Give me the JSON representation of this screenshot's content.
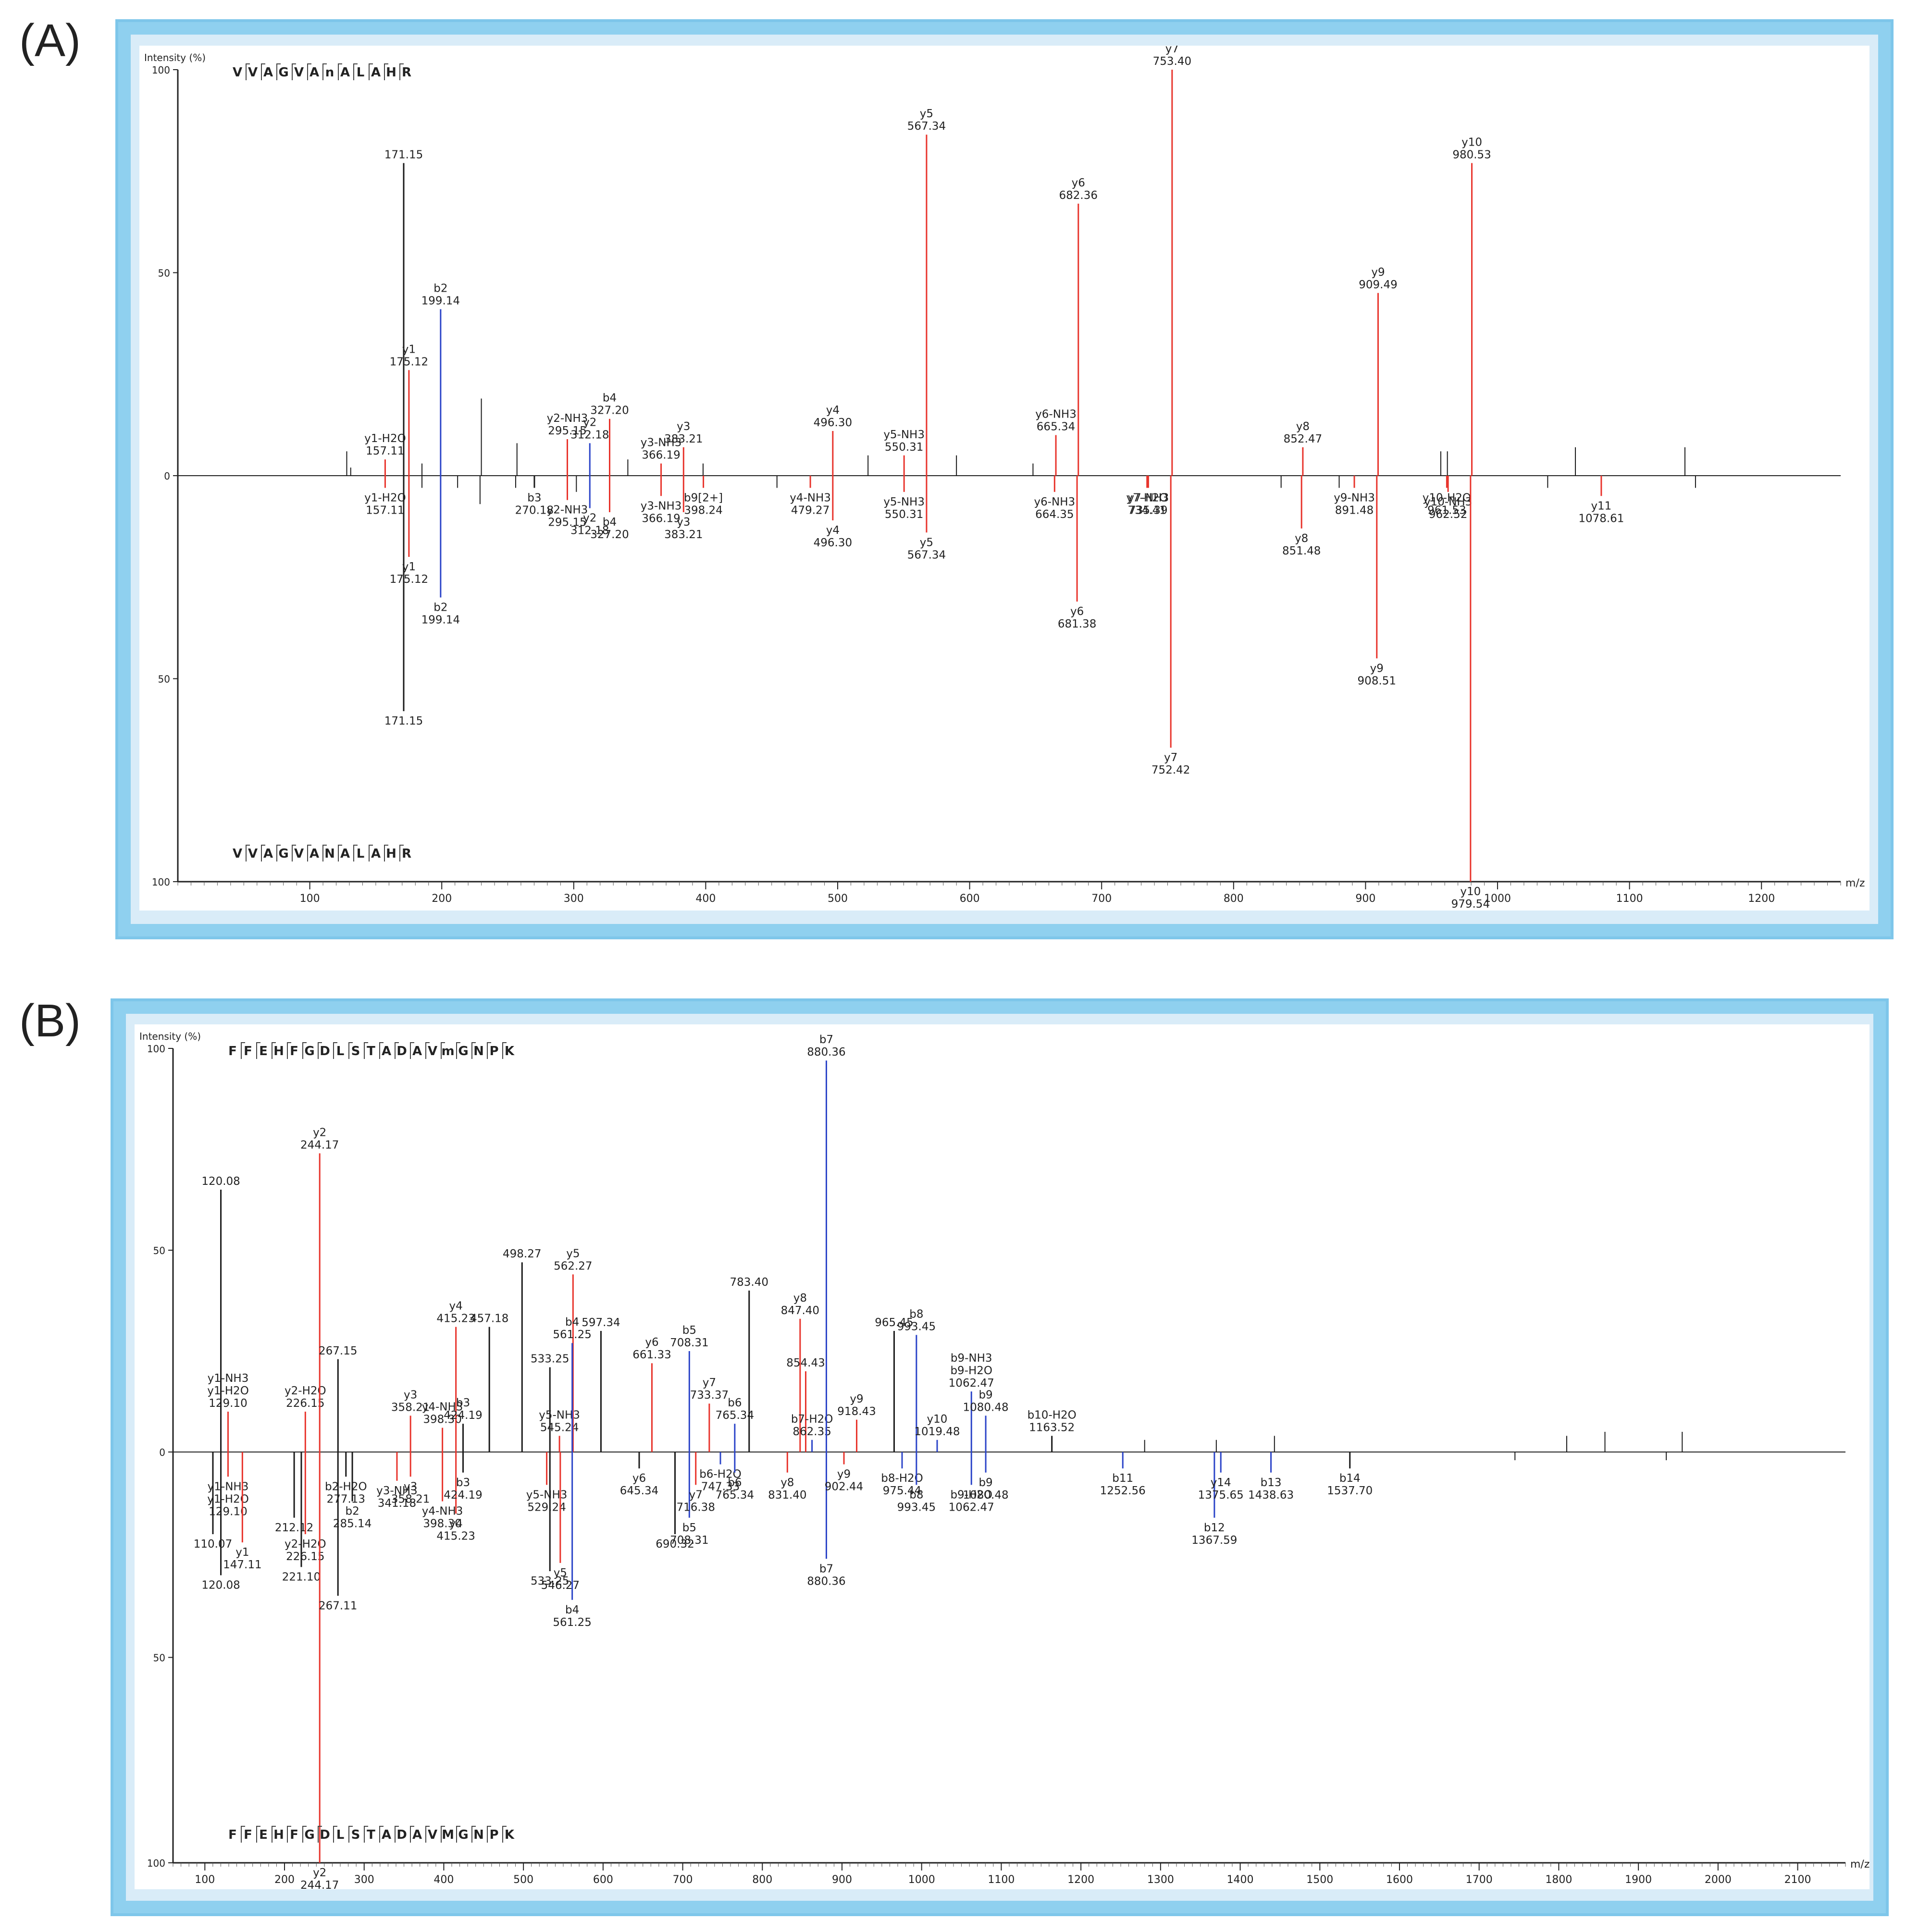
{
  "figure": {
    "panel_a_label": "(A)",
    "panel_b_label": "(B)"
  },
  "colors": {
    "y_ion": "#e8342c",
    "b_ion": "#2b44c8",
    "other": "#1a1a1a",
    "frame": "#8fd0ef"
  },
  "chart_data": [
    {
      "type": "bar",
      "panel": "(A)",
      "ylabel": "Intensity (%)",
      "xlabel": "m/z",
      "xlim": [
        0,
        1260
      ],
      "ylim_top": [
        0,
        100
      ],
      "ylim_bottom": [
        0,
        100
      ],
      "xticks": [
        100,
        200,
        300,
        400,
        500,
        600,
        700,
        800,
        900,
        1000,
        1100,
        1200
      ],
      "yticks_top": [
        100,
        50,
        0
      ],
      "yticks_bottom": [
        50,
        100
      ],
      "sequence_top": "VVAGVAnALAHR",
      "sequence_bottom": "VVAGVANALAHR",
      "peaks_top": [
        {
          "mz": 171.15,
          "i": 77,
          "c": "k",
          "label": "171.15"
        },
        {
          "mz": 175.12,
          "i": 26,
          "c": "y",
          "label": "y1\n175.12"
        },
        {
          "mz": 157.11,
          "i": 4,
          "c": "y",
          "label": "y1-H2O\n157.11"
        },
        {
          "mz": 199.14,
          "i": 41,
          "c": "b",
          "label": "b2\n199.14"
        },
        {
          "mz": 295.15,
          "i": 9,
          "c": "y",
          "label": "y2-NH3\n295.15"
        },
        {
          "mz": 312.18,
          "i": 8,
          "c": "b",
          "label": "y2\n312.18"
        },
        {
          "mz": 327.2,
          "i": 14,
          "c": "y",
          "label": "b4\n327.20"
        },
        {
          "mz": 366.19,
          "i": 3,
          "c": "y",
          "label": "y3-NH3\n366.19"
        },
        {
          "mz": 383.21,
          "i": 7,
          "c": "y",
          "label": "y3\n383.21"
        },
        {
          "mz": 496.3,
          "i": 11,
          "c": "y",
          "label": "y4\n496.30"
        },
        {
          "mz": 550.31,
          "i": 5,
          "c": "y",
          "label": "y5-NH3\n550.31"
        },
        {
          "mz": 567.34,
          "i": 84,
          "c": "y",
          "label": "y5\n567.34"
        },
        {
          "mz": 665.34,
          "i": 10,
          "c": "y",
          "label": "y6-NH3\n665.34"
        },
        {
          "mz": 682.36,
          "i": 67,
          "c": "y",
          "label": "y6\n682.36"
        },
        {
          "mz": 753.4,
          "i": 100,
          "c": "y",
          "label": "y7\n753.40"
        },
        {
          "mz": 852.47,
          "i": 7,
          "c": "y",
          "label": "y8\n852.47"
        },
        {
          "mz": 909.49,
          "i": 45,
          "c": "y",
          "label": "y9\n909.49"
        },
        {
          "mz": 980.53,
          "i": 77,
          "c": "y",
          "label": "y10\n980.53"
        },
        {
          "mz": 128,
          "i": 6,
          "c": "k"
        },
        {
          "mz": 131,
          "i": 2,
          "c": "k"
        },
        {
          "mz": 185,
          "i": 3,
          "c": "k"
        },
        {
          "mz": 230,
          "i": 19,
          "c": "k"
        },
        {
          "mz": 257,
          "i": 8,
          "c": "k"
        },
        {
          "mz": 341,
          "i": 4,
          "c": "k"
        },
        {
          "mz": 398,
          "i": 3,
          "c": "k"
        },
        {
          "mz": 523,
          "i": 5,
          "c": "k"
        },
        {
          "mz": 590,
          "i": 5,
          "c": "k"
        },
        {
          "mz": 648,
          "i": 3,
          "c": "k"
        },
        {
          "mz": 957,
          "i": 6,
          "c": "k"
        },
        {
          "mz": 962,
          "i": 6,
          "c": "k"
        },
        {
          "mz": 1059,
          "i": 7,
          "c": "k"
        },
        {
          "mz": 1142,
          "i": 7,
          "c": "k"
        }
      ],
      "peaks_bottom": [
        {
          "mz": 171.15,
          "i": 58,
          "c": "k",
          "label": "171.15"
        },
        {
          "mz": 175.12,
          "i": 20,
          "c": "y",
          "label": "y1\n175.12"
        },
        {
          "mz": 157.11,
          "i": 3,
          "c": "y",
          "label": "y1-H2O\n157.11"
        },
        {
          "mz": 199.14,
          "i": 30,
          "c": "b",
          "label": "b2\n199.14"
        },
        {
          "mz": 270.18,
          "i": 3,
          "c": "k",
          "label": "b3\n270.18"
        },
        {
          "mz": 295.15,
          "i": 6,
          "c": "y",
          "label": "y2-NH3\n295.15"
        },
        {
          "mz": 312.18,
          "i": 8,
          "c": "b",
          "label": "y2\n312.18"
        },
        {
          "mz": 327.2,
          "i": 9,
          "c": "y",
          "label": "b4\n327.20"
        },
        {
          "mz": 366.19,
          "i": 5,
          "c": "y",
          "label": "y3-NH3\n366.19"
        },
        {
          "mz": 383.21,
          "i": 9,
          "c": "y",
          "label": "y3\n383.21"
        },
        {
          "mz": 398.24,
          "i": 3,
          "c": "y",
          "label": "b9[2+]\n398.24"
        },
        {
          "mz": 479.27,
          "i": 3,
          "c": "y",
          "label": "y4-NH3\n479.27"
        },
        {
          "mz": 496.3,
          "i": 11,
          "c": "y",
          "label": "y4\n496.30"
        },
        {
          "mz": 550.31,
          "i": 4,
          "c": "y",
          "label": "y5-NH3\n550.31"
        },
        {
          "mz": 567.34,
          "i": 14,
          "c": "y",
          "label": "y5\n567.34"
        },
        {
          "mz": 664.35,
          "i": 4,
          "c": "y",
          "label": "y6-NH3\n664.35"
        },
        {
          "mz": 681.38,
          "i": 31,
          "c": "y",
          "label": "y6\n681.38"
        },
        {
          "mz": 734.41,
          "i": 3,
          "c": "y",
          "label": "y7-H2O\n734.41"
        },
        {
          "mz": 735.39,
          "i": 3,
          "c": "y",
          "label": "y7-NH3\n735.39"
        },
        {
          "mz": 752.42,
          "i": 67,
          "c": "y",
          "label": "y7\n752.42"
        },
        {
          "mz": 851.48,
          "i": 13,
          "c": "y",
          "label": "y8\n851.48"
        },
        {
          "mz": 891.48,
          "i": 3,
          "c": "y",
          "label": "y9-NH3\n891.48"
        },
        {
          "mz": 908.51,
          "i": 45,
          "c": "y",
          "label": "y9\n908.51"
        },
        {
          "mz": 961.53,
          "i": 3,
          "c": "y",
          "label": "y10-H2O\n961.53"
        },
        {
          "mz": 962.52,
          "i": 4,
          "c": "y",
          "label": "y10-NH3\n962.52"
        },
        {
          "mz": 979.54,
          "i": 100,
          "c": "y",
          "label": "y10\n979.54"
        },
        {
          "mz": 1078.61,
          "i": 5,
          "c": "y",
          "label": "y11\n1078.61"
        },
        {
          "mz": 185,
          "i": 3,
          "c": "k"
        },
        {
          "mz": 212,
          "i": 3,
          "c": "k"
        },
        {
          "mz": 229,
          "i": 7,
          "c": "k"
        },
        {
          "mz": 256,
          "i": 3,
          "c": "k"
        },
        {
          "mz": 302,
          "i": 4,
          "c": "k"
        },
        {
          "mz": 454,
          "i": 3,
          "c": "k"
        },
        {
          "mz": 836,
          "i": 3,
          "c": "k"
        },
        {
          "mz": 880,
          "i": 3,
          "c": "k"
        },
        {
          "mz": 1038,
          "i": 3,
          "c": "k"
        },
        {
          "mz": 1150,
          "i": 3,
          "c": "k"
        }
      ]
    },
    {
      "type": "bar",
      "panel": "(B)",
      "ylabel": "Intensity (%)",
      "xlabel": "m/z",
      "xlim": [
        60,
        2160
      ],
      "ylim_top": [
        0,
        100
      ],
      "ylim_bottom": [
        0,
        100
      ],
      "xticks": [
        100,
        200,
        300,
        400,
        500,
        600,
        700,
        800,
        900,
        1000,
        1100,
        1200,
        1300,
        1400,
        1500,
        1600,
        1700,
        1800,
        1900,
        2000,
        2100
      ],
      "yticks_top": [
        100,
        50,
        0
      ],
      "yticks_bottom": [
        50,
        100
      ],
      "sequence_top": "FFEHFGDLSTADAVmGNPK",
      "sequence_bottom": "FFEHFGDLSTADAVMGNPK",
      "peaks_top": [
        {
          "mz": 120.08,
          "i": 65,
          "c": "k",
          "label": "120.08"
        },
        {
          "mz": 129.1,
          "i": 10,
          "c": "y",
          "label": "y1-NH3\ny1-H2O\n129.10"
        },
        {
          "mz": 226.15,
          "i": 10,
          "c": "y",
          "label": "y2-H2O\n226.15"
        },
        {
          "mz": 244.17,
          "i": 74,
          "c": "y",
          "label": "y2\n244.17"
        },
        {
          "mz": 267.15,
          "i": 23,
          "c": "k",
          "label": "267.15"
        },
        {
          "mz": 358.21,
          "i": 9,
          "c": "y",
          "label": "y3\n358.21"
        },
        {
          "mz": 398.3,
          "i": 6,
          "c": "y",
          "label": "y4-NH3\n398.30"
        },
        {
          "mz": 415.23,
          "i": 31,
          "c": "y",
          "label": "y4\n415.23"
        },
        {
          "mz": 457.18,
          "i": 31,
          "c": "k",
          "label": "457.18"
        },
        {
          "mz": 424.19,
          "i": 7,
          "c": "k",
          "label": "b3\n424.19"
        },
        {
          "mz": 498.27,
          "i": 47,
          "c": "k",
          "label": "498.27"
        },
        {
          "mz": 533.25,
          "i": 21,
          "c": "k",
          "label": "533.25"
        },
        {
          "mz": 545.24,
          "i": 4,
          "c": "y",
          "label": "y5-NH3\n545.24"
        },
        {
          "mz": 562.27,
          "i": 44,
          "c": "y",
          "label": "y5\n562.27"
        },
        {
          "mz": 561.25,
          "i": 27,
          "c": "b",
          "label": "b4\n561.25"
        },
        {
          "mz": 597.34,
          "i": 30,
          "c": "k",
          "label": "597.34"
        },
        {
          "mz": 661.33,
          "i": 22,
          "c": "y",
          "label": "y6\n661.33"
        },
        {
          "mz": 708.31,
          "i": 25,
          "c": "b",
          "label": "b5\n708.31"
        },
        {
          "mz": 733.37,
          "i": 12,
          "c": "y",
          "label": "y7\n733.37"
        },
        {
          "mz": 765.34,
          "i": 7,
          "c": "b",
          "label": "b6\n765.34"
        },
        {
          "mz": 783.4,
          "i": 40,
          "c": "k",
          "label": "783.40"
        },
        {
          "mz": 847.4,
          "i": 33,
          "c": "y",
          "label": "y8\n847.40"
        },
        {
          "mz": 854.43,
          "i": 20,
          "c": "y",
          "label": "854.43"
        },
        {
          "mz": 862.35,
          "i": 3,
          "c": "b",
          "label": "b7-H2O\n862.35"
        },
        {
          "mz": 880.36,
          "i": 97,
          "c": "b",
          "label": "b7\n880.36"
        },
        {
          "mz": 918.43,
          "i": 8,
          "c": "y",
          "label": "y9\n918.43"
        },
        {
          "mz": 965.45,
          "i": 30,
          "c": "k",
          "label": "965.45"
        },
        {
          "mz": 993.45,
          "i": 29,
          "c": "b",
          "label": "b8\n993.45"
        },
        {
          "mz": 1019.48,
          "i": 3,
          "c": "b",
          "label": "y10\n1019.48"
        },
        {
          "mz": 1062.47,
          "i": 15,
          "c": "b",
          "label": "b9-NH3\nb9-H2O\n1062.47"
        },
        {
          "mz": 1080.48,
          "i": 9,
          "c": "b",
          "label": "b9\n1080.48"
        },
        {
          "mz": 1163.52,
          "i": 4,
          "c": "k",
          "label": "b10-H2O\n1163.52"
        },
        {
          "mz": 1280,
          "i": 3,
          "c": "k"
        },
        {
          "mz": 1370,
          "i": 3,
          "c": "k"
        },
        {
          "mz": 1443,
          "i": 4,
          "c": "k"
        },
        {
          "mz": 1810,
          "i": 4,
          "c": "k"
        },
        {
          "mz": 1858,
          "i": 5,
          "c": "k"
        },
        {
          "mz": 1955,
          "i": 5,
          "c": "k"
        }
      ],
      "peaks_bottom": [
        {
          "mz": 120.08,
          "i": 30,
          "c": "k",
          "label": "120.08"
        },
        {
          "mz": 110.07,
          "i": 20,
          "c": "k",
          "label": "110.07"
        },
        {
          "mz": 129.1,
          "i": 6,
          "c": "y",
          "label": "y1-NH3\ny1-H2O\n129.10"
        },
        {
          "mz": 147.11,
          "i": 22,
          "c": "y",
          "label": "y1\n147.11"
        },
        {
          "mz": 212.12,
          "i": 16,
          "c": "k",
          "label": "212.12"
        },
        {
          "mz": 221.1,
          "i": 28,
          "c": "k",
          "label": "221.10"
        },
        {
          "mz": 226.15,
          "i": 20,
          "c": "y",
          "label": "y2-H2O\n226.15"
        },
        {
          "mz": 244.17,
          "i": 100,
          "c": "y",
          "label": "y2\n244.17"
        },
        {
          "mz": 267.11,
          "i": 35,
          "c": "k",
          "label": "267.11"
        },
        {
          "mz": 277.13,
          "i": 6,
          "c": "k",
          "label": "b2-H2O\n277.13"
        },
        {
          "mz": 285.14,
          "i": 12,
          "c": "k",
          "label": "b2\n285.14"
        },
        {
          "mz": 341.18,
          "i": 7,
          "c": "y",
          "label": "y3-NH3\n341.18"
        },
        {
          "mz": 358.21,
          "i": 6,
          "c": "y",
          "label": "y3\n358.21"
        },
        {
          "mz": 398.3,
          "i": 12,
          "c": "y",
          "label": "y4-NH3\n398.30"
        },
        {
          "mz": 415.23,
          "i": 15,
          "c": "y",
          "label": "y4\n415.23"
        },
        {
          "mz": 424.19,
          "i": 5,
          "c": "k",
          "label": "b3\n424.19"
        },
        {
          "mz": 529.24,
          "i": 8,
          "c": "y",
          "label": "y5-NH3\n529.24"
        },
        {
          "mz": 533.25,
          "i": 29,
          "c": "k",
          "label": "533.25"
        },
        {
          "mz": 546.27,
          "i": 27,
          "c": "y",
          "label": "y5\n546.27"
        },
        {
          "mz": 561.25,
          "i": 36,
          "c": "b",
          "label": "b4\n561.25"
        },
        {
          "mz": 645.34,
          "i": 4,
          "c": "k",
          "label": "y6\n645.34"
        },
        {
          "mz": 690.32,
          "i": 20,
          "c": "k",
          "label": "690.32"
        },
        {
          "mz": 708.31,
          "i": 16,
          "c": "b",
          "label": "b5\n708.31"
        },
        {
          "mz": 716.38,
          "i": 8,
          "c": "y",
          "label": "y7\n716.38"
        },
        {
          "mz": 747.33,
          "i": 3,
          "c": "b",
          "label": "b6-H2O\n747.33"
        },
        {
          "mz": 765.34,
          "i": 5,
          "c": "b",
          "label": "b6\n765.34"
        },
        {
          "mz": 831.4,
          "i": 5,
          "c": "y",
          "label": "y8\n831.40"
        },
        {
          "mz": 880.36,
          "i": 26,
          "c": "b",
          "label": "b7\n880.36"
        },
        {
          "mz": 902.44,
          "i": 3,
          "c": "y",
          "label": "y9\n902.44"
        },
        {
          "mz": 975.44,
          "i": 4,
          "c": "b",
          "label": "b8-H2O\n975.44"
        },
        {
          "mz": 993.45,
          "i": 8,
          "c": "b",
          "label": "b8\n993.45"
        },
        {
          "mz": 1062.47,
          "i": 8,
          "c": "b",
          "label": "b9-H2O\n1062.47"
        },
        {
          "mz": 1080.48,
          "i": 5,
          "c": "b",
          "label": "b9\n1080.48"
        },
        {
          "mz": 1252.56,
          "i": 4,
          "c": "b",
          "label": "b11\n1252.56"
        },
        {
          "mz": 1367.59,
          "i": 16,
          "c": "b",
          "label": "b12\n1367.59"
        },
        {
          "mz": 1375.65,
          "i": 5,
          "c": "b",
          "label": "y14\n1375.65"
        },
        {
          "mz": 1438.63,
          "i": 5,
          "c": "b",
          "label": "b13\n1438.63"
        },
        {
          "mz": 1537.7,
          "i": 4,
          "c": "k",
          "label": "b14\n1537.70"
        },
        {
          "mz": 1745,
          "i": 2,
          "c": "k"
        },
        {
          "mz": 1935,
          "i": 2,
          "c": "k"
        }
      ]
    }
  ]
}
